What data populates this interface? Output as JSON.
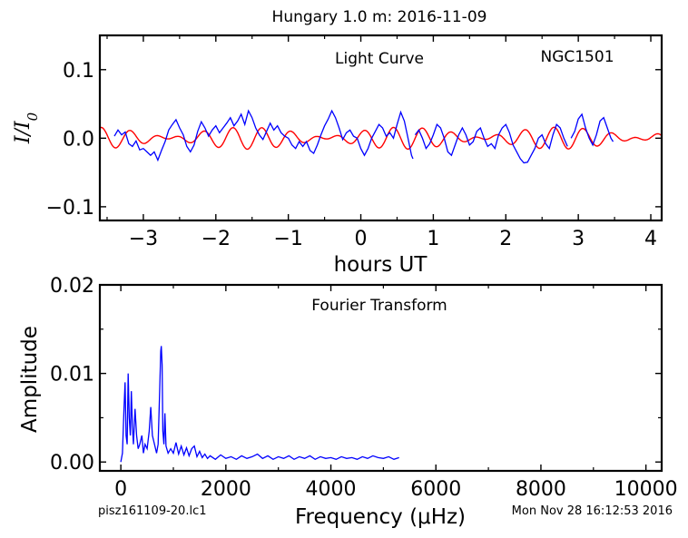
{
  "figure": {
    "title": "Hungary 1.0 m:  2016-11-09",
    "footer_left": "pisz161109-20.lc1",
    "footer_right": "Mon Nov 28 16:12:53 2016"
  },
  "chart_data": [
    {
      "id": "light-curve",
      "type": "line",
      "annotation": "Light Curve",
      "object_label": "NGC1501",
      "xlabel": "hours UT",
      "ylabel": "I/I0",
      "xlim": [
        -3.6,
        4.15
      ],
      "ylim": [
        -0.12,
        0.15
      ],
      "xticks": [
        -3,
        -2,
        -1,
        0,
        1,
        2,
        3,
        4
      ],
      "xtick_labels": [
        "−3",
        "−2",
        "−1",
        "0",
        "1",
        "2",
        "3",
        "4"
      ],
      "yticks": [
        -0.1,
        0.0,
        0.1
      ],
      "ytick_labels": [
        "−0.1",
        "0.0",
        "0.1"
      ],
      "grid": false,
      "series": [
        {
          "color": "#0000ff",
          "segments": [
            [
              [
                -3.4,
                0.003
              ],
              [
                -3.35,
                0.012
              ],
              [
                -3.3,
                0.005
              ],
              [
                -3.25,
                0.009
              ],
              [
                -3.2,
                -0.008
              ],
              [
                -3.15,
                -0.012
              ],
              [
                -3.1,
                -0.004
              ],
              [
                -3.05,
                -0.017
              ],
              [
                -3.0,
                -0.015
              ],
              [
                -2.95,
                -0.02
              ],
              [
                -2.9,
                -0.025
              ],
              [
                -2.85,
                -0.02
              ],
              [
                -2.8,
                -0.032
              ],
              [
                -2.75,
                -0.018
              ],
              [
                -2.7,
                -0.005
              ],
              [
                -2.65,
                0.012
              ],
              [
                -2.6,
                0.02
              ],
              [
                -2.55,
                0.027
              ],
              [
                -2.5,
                0.015
              ],
              [
                -2.45,
                0.005
              ],
              [
                -2.4,
                -0.012
              ],
              [
                -2.35,
                -0.02
              ],
              [
                -2.3,
                -0.01
              ],
              [
                -2.25,
                0.01
              ],
              [
                -2.2,
                0.024
              ],
              [
                -2.15,
                0.015
              ],
              [
                -2.1,
                0.003
              ],
              [
                -2.05,
                0.012
              ],
              [
                -2.0,
                0.018
              ],
              [
                -1.95,
                0.008
              ],
              [
                -1.9,
                0.015
              ],
              [
                -1.85,
                0.022
              ],
              [
                -1.8,
                0.03
              ],
              [
                -1.75,
                0.018
              ],
              [
                -1.7,
                0.025
              ],
              [
                -1.65,
                0.035
              ],
              [
                -1.6,
                0.02
              ],
              [
                -1.55,
                0.04
              ],
              [
                -1.5,
                0.03
              ],
              [
                -1.45,
                0.015
              ],
              [
                -1.4,
                0.005
              ],
              [
                -1.35,
                -0.002
              ],
              [
                -1.3,
                0.01
              ],
              [
                -1.25,
                0.022
              ],
              [
                -1.2,
                0.012
              ],
              [
                -1.15,
                0.018
              ],
              [
                -1.1,
                0.008
              ],
              [
                -1.05,
                0.003
              ],
              [
                -1.0,
                0.0
              ],
              [
                -0.95,
                -0.01
              ],
              [
                -0.9,
                -0.015
              ],
              [
                -0.85,
                -0.005
              ],
              [
                -0.8,
                -0.012
              ],
              [
                -0.75,
                -0.005
              ],
              [
                -0.7,
                -0.018
              ],
              [
                -0.65,
                -0.022
              ],
              [
                -0.6,
                -0.01
              ],
              [
                -0.55,
                0.005
              ],
              [
                -0.5,
                0.018
              ],
              [
                -0.45,
                0.028
              ],
              [
                -0.4,
                0.04
              ],
              [
                -0.35,
                0.03
              ],
              [
                -0.3,
                0.015
              ],
              [
                -0.25,
                -0.002
              ],
              [
                -0.2,
                0.008
              ],
              [
                -0.15,
                0.012
              ],
              [
                -0.1,
                0.003
              ],
              [
                -0.05,
                0.0
              ],
              [
                0.0,
                -0.015
              ],
              [
                0.05,
                -0.025
              ],
              [
                0.1,
                -0.015
              ],
              [
                0.15,
                0.0
              ],
              [
                0.2,
                0.01
              ],
              [
                0.25,
                0.02
              ],
              [
                0.3,
                0.015
              ],
              [
                0.35,
                0.003
              ],
              [
                0.4,
                0.008
              ],
              [
                0.45,
                0.0
              ],
              [
                0.5,
                0.02
              ],
              [
                0.55,
                0.038
              ],
              [
                0.6,
                0.025
              ],
              [
                0.65,
                0.0
              ],
              [
                0.7,
                -0.025
              ],
              [
                0.72,
                -0.03
              ]
            ],
            [
              [
                0.75,
                0.005
              ],
              [
                0.8,
                0.012
              ],
              [
                0.85,
                0.0
              ],
              [
                0.9,
                -0.015
              ],
              [
                0.95,
                -0.008
              ],
              [
                1.0,
                0.005
              ],
              [
                1.05,
                0.02
              ],
              [
                1.1,
                0.015
              ],
              [
                1.15,
                0.0
              ],
              [
                1.2,
                -0.02
              ],
              [
                1.25,
                -0.025
              ],
              [
                1.3,
                -0.01
              ],
              [
                1.35,
                0.005
              ],
              [
                1.4,
                0.015
              ],
              [
                1.45,
                0.005
              ],
              [
                1.5,
                -0.01
              ],
              [
                1.55,
                -0.005
              ],
              [
                1.6,
                0.01
              ],
              [
                1.65,
                0.015
              ],
              [
                1.7,
                0.0
              ],
              [
                1.75,
                -0.012
              ],
              [
                1.8,
                -0.008
              ],
              [
                1.85,
                -0.015
              ],
              [
                1.9,
                0.005
              ],
              [
                1.95,
                0.015
              ],
              [
                2.0,
                0.02
              ],
              [
                2.05,
                0.008
              ],
              [
                2.1,
                -0.01
              ],
              [
                2.15,
                -0.02
              ],
              [
                2.2,
                -0.03
              ],
              [
                2.25,
                -0.036
              ],
              [
                2.3,
                -0.035
              ],
              [
                2.35,
                -0.025
              ],
              [
                2.4,
                -0.015
              ],
              [
                2.45,
                0.0
              ],
              [
                2.5,
                0.005
              ],
              [
                2.55,
                -0.008
              ],
              [
                2.6,
                -0.015
              ],
              [
                2.65,
                0.005
              ],
              [
                2.7,
                0.02
              ],
              [
                2.75,
                0.015
              ],
              [
                2.8,
                0.0
              ],
              [
                2.85,
                -0.012
              ]
            ],
            [
              [
                2.9,
                0.0
              ],
              [
                2.95,
                0.01
              ],
              [
                3.0,
                0.028
              ],
              [
                3.05,
                0.035
              ],
              [
                3.1,
                0.015
              ],
              [
                3.15,
                0.0
              ],
              [
                3.2,
                -0.01
              ],
              [
                3.25,
                0.005
              ],
              [
                3.3,
                0.025
              ],
              [
                3.35,
                0.03
              ],
              [
                3.4,
                0.015
              ],
              [
                3.45,
                0.0
              ],
              [
                3.48,
                -0.005
              ]
            ]
          ]
        },
        {
          "color": "#ff0000",
          "model": {
            "components": [
              {
                "amp": 0.0085,
                "period_h": 0.3683,
                "phase": 0.0
              },
              {
                "amp": 0.0075,
                "period_h": 0.4444,
                "phase": 1.7
              }
            ]
          }
        }
      ]
    },
    {
      "id": "fourier-transform",
      "type": "line",
      "annotation": "Fourier Transform",
      "xlabel": "Frequency (μHz)",
      "ylabel": "Amplitude",
      "xlim": [
        -400,
        10300
      ],
      "ylim": [
        -0.001,
        0.02
      ],
      "xticks": [
        0,
        2000,
        4000,
        6000,
        8000,
        10000
      ],
      "xtick_labels": [
        "0",
        "2000",
        "4000",
        "6000",
        "8000",
        "10000"
      ],
      "yticks": [
        0.0,
        0.01,
        0.02
      ],
      "ytick_labels": [
        "0.00",
        "0.01",
        "0.02"
      ],
      "grid": false,
      "series": [
        {
          "color": "#0000ff",
          "points": [
            [
              0,
              0.0
            ],
            [
              30,
              0.001
            ],
            [
              60,
              0.006
            ],
            [
              80,
              0.009
            ],
            [
              100,
              0.003
            ],
            [
              120,
              0.002
            ],
            [
              140,
              0.01
            ],
            [
              160,
              0.005
            ],
            [
              180,
              0.003
            ],
            [
              200,
              0.008
            ],
            [
              220,
              0.004
            ],
            [
              240,
              0.002
            ],
            [
              270,
              0.006
            ],
            [
              300,
              0.003
            ],
            [
              330,
              0.0015
            ],
            [
              360,
              0.002
            ],
            [
              400,
              0.003
            ],
            [
              430,
              0.001
            ],
            [
              460,
              0.002
            ],
            [
              500,
              0.0015
            ],
            [
              540,
              0.0035
            ],
            [
              570,
              0.0062
            ],
            [
              600,
              0.003
            ],
            [
              640,
              0.002
            ],
            [
              680,
              0.001
            ],
            [
              710,
              0.002
            ],
            [
              740,
              0.008
            ],
            [
              760,
              0.0125
            ],
            [
              770,
              0.0131
            ],
            [
              785,
              0.011
            ],
            [
              800,
              0.0035
            ],
            [
              820,
              0.002
            ],
            [
              840,
              0.0055
            ],
            [
              860,
              0.0018
            ],
            [
              900,
              0.001
            ],
            [
              950,
              0.0015
            ],
            [
              1000,
              0.001
            ],
            [
              1050,
              0.0022
            ],
            [
              1100,
              0.0009
            ],
            [
              1150,
              0.0018
            ],
            [
              1200,
              0.0008
            ],
            [
              1250,
              0.0016
            ],
            [
              1300,
              0.0007
            ],
            [
              1350,
              0.0015
            ],
            [
              1400,
              0.0018
            ],
            [
              1450,
              0.0006
            ],
            [
              1500,
              0.0012
            ],
            [
              1550,
              0.0005
            ],
            [
              1600,
              0.0009
            ],
            [
              1650,
              0.0004
            ],
            [
              1700,
              0.0007
            ],
            [
              1800,
              0.0003
            ],
            [
              1900,
              0.0008
            ],
            [
              2000,
              0.0004
            ],
            [
              2100,
              0.0006
            ],
            [
              2200,
              0.0003
            ],
            [
              2300,
              0.0007
            ],
            [
              2400,
              0.0004
            ],
            [
              2500,
              0.0006
            ],
            [
              2600,
              0.0009
            ],
            [
              2700,
              0.0004
            ],
            [
              2800,
              0.0007
            ],
            [
              2900,
              0.0003
            ],
            [
              3000,
              0.0006
            ],
            [
              3100,
              0.0004
            ],
            [
              3200,
              0.0007
            ],
            [
              3300,
              0.0003
            ],
            [
              3400,
              0.0006
            ],
            [
              3500,
              0.0004
            ],
            [
              3600,
              0.0007
            ],
            [
              3700,
              0.0003
            ],
            [
              3800,
              0.0006
            ],
            [
              3900,
              0.0004
            ],
            [
              4000,
              0.0005
            ],
            [
              4100,
              0.0003
            ],
            [
              4200,
              0.0006
            ],
            [
              4300,
              0.0004
            ],
            [
              4400,
              0.0005
            ],
            [
              4500,
              0.0003
            ],
            [
              4600,
              0.0006
            ],
            [
              4700,
              0.0004
            ],
            [
              4800,
              0.0007
            ],
            [
              4900,
              0.0005
            ],
            [
              5000,
              0.0004
            ],
            [
              5100,
              0.0006
            ],
            [
              5200,
              0.0003
            ],
            [
              5300,
              0.0005
            ]
          ]
        }
      ]
    }
  ]
}
